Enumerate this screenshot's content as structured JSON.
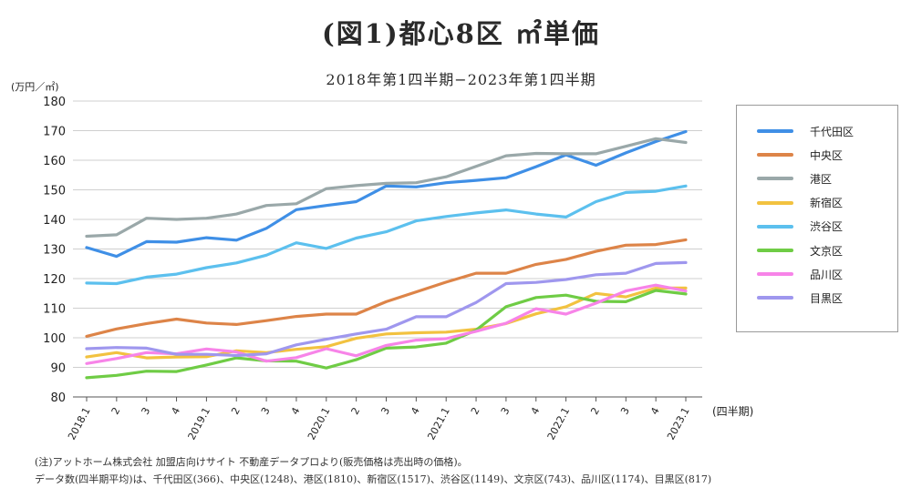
{
  "title": "(図1)都心8区 ㎡単価",
  "subtitle": "2018年第1四半期−2023年第1四半期",
  "chart_data": {
    "type": "line",
    "ylabel": "(万円／㎡)",
    "xlabel": "(四半期)",
    "ylim": [
      80,
      180
    ],
    "yticks": [
      80,
      90,
      100,
      110,
      120,
      130,
      140,
      150,
      160,
      170,
      180
    ],
    "grid": "horizontal",
    "legend_position": "right",
    "categories": [
      "2018.1",
      "2",
      "3",
      "4",
      "2019.1",
      "2",
      "3",
      "4",
      "2020.1",
      "2",
      "3",
      "4",
      "2021.1",
      "2",
      "3",
      "4",
      "2022.1",
      "2",
      "3",
      "4",
      "2023.1"
    ],
    "series": [
      {
        "name": "千代田区",
        "color": "#3f8fe6",
        "values": [
          130.5,
          127.5,
          132.5,
          132.3,
          133.8,
          133.0,
          137.0,
          143.3,
          144.7,
          146.0,
          151.3,
          151.0,
          152.4,
          153.2,
          154.1,
          157.8,
          161.8,
          158.3,
          162.5,
          166.3,
          169.7
        ]
      },
      {
        "name": "中央区",
        "color": "#dd8448",
        "values": [
          100.5,
          103.0,
          104.8,
          106.3,
          105.0,
          104.5,
          105.8,
          107.2,
          108.0,
          108.0,
          112.2,
          115.5,
          118.8,
          121.8,
          121.8,
          124.8,
          126.5,
          129.2,
          131.3,
          131.5,
          133.1
        ]
      },
      {
        "name": "港区",
        "color": "#9aa8a9",
        "values": [
          134.3,
          134.8,
          140.4,
          140.0,
          140.4,
          141.8,
          144.7,
          145.3,
          150.4,
          151.4,
          152.2,
          152.4,
          154.4,
          157.9,
          161.5,
          162.3,
          162.2,
          162.2,
          164.7,
          167.3,
          166.0
        ]
      },
      {
        "name": "新宿区",
        "color": "#f2c240",
        "values": [
          93.5,
          95.0,
          93.2,
          93.5,
          93.6,
          95.6,
          95.0,
          96.1,
          97.0,
          99.8,
          101.3,
          101.7,
          101.9,
          102.9,
          104.8,
          108.1,
          110.5,
          115.0,
          113.8,
          116.8,
          116.8
        ]
      },
      {
        "name": "渋谷区",
        "color": "#5cc0ee",
        "values": [
          118.5,
          118.3,
          120.5,
          121.5,
          123.7,
          125.3,
          127.9,
          132.1,
          130.2,
          133.7,
          135.8,
          139.5,
          141.0,
          142.2,
          143.2,
          141.8,
          140.8,
          146.0,
          149.1,
          149.5,
          151.3
        ]
      },
      {
        "name": "文京区",
        "color": "#6fcc45",
        "values": [
          86.5,
          87.3,
          88.7,
          88.6,
          90.8,
          93.2,
          92.2,
          92.1,
          89.8,
          92.6,
          96.5,
          96.9,
          98.2,
          102.6,
          110.5,
          113.6,
          114.4,
          112.3,
          112.2,
          116.0,
          114.8
        ]
      },
      {
        "name": "品川区",
        "color": "#f784e8",
        "values": [
          91.3,
          93.0,
          95.0,
          94.6,
          96.2,
          95.2,
          92.1,
          93.3,
          96.3,
          93.9,
          97.4,
          99.2,
          99.7,
          102.2,
          104.9,
          109.8,
          108.0,
          111.7,
          115.8,
          117.8,
          115.8
        ]
      },
      {
        "name": "目黒区",
        "color": "#9f97ee",
        "values": [
          96.3,
          96.7,
          96.5,
          94.4,
          94.4,
          94.0,
          94.6,
          97.6,
          99.5,
          101.3,
          102.9,
          107.1,
          107.1,
          111.9,
          118.3,
          118.7,
          119.7,
          121.3,
          121.8,
          125.1,
          125.4
        ]
      }
    ]
  },
  "footnotes": [
    "(注)アットホーム株式会社 加盟店向けサイト 不動産データプロより(販売価格は売出時の価格)。",
    "データ数(四半期平均)は、千代田区(366)、中央区(1248)、港区(1810)、新宿区(1517)、渋谷区(1149)、文京区(743)、品川区(1174)、目黒区(817)"
  ]
}
